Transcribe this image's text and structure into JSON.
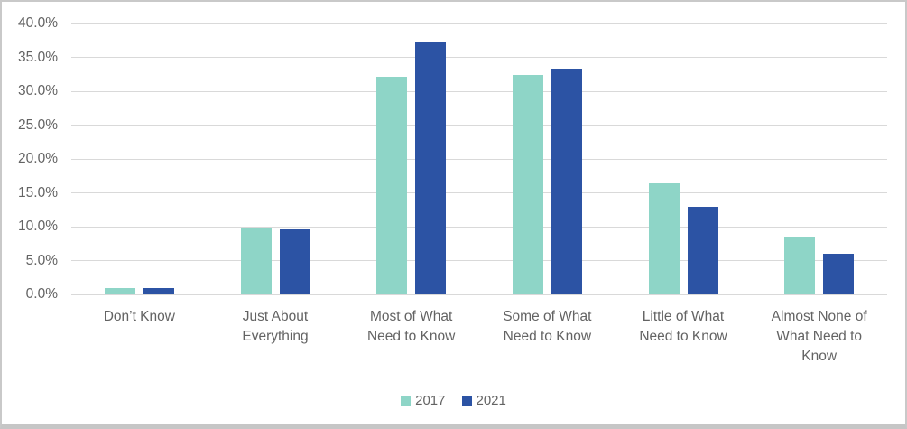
{
  "chart_data": {
    "type": "bar",
    "title": "",
    "xlabel": "",
    "ylabel": "",
    "categories": [
      "Don’t Know",
      "Just About Everything",
      "Most of What Need to Know",
      "Some of What Need to Know",
      "Little of What Need to Know",
      "Almost None of What Need to Know"
    ],
    "series": [
      {
        "name": "2017",
        "color": "#8ed5c7",
        "values": [
          0.9,
          9.7,
          32.1,
          32.4,
          16.4,
          8.5
        ]
      },
      {
        "name": "2021",
        "color": "#2c53a4",
        "values": [
          0.9,
          9.6,
          37.2,
          33.4,
          12.9,
          6.0
        ]
      }
    ],
    "ylim": [
      0,
      40
    ],
    "ytick_step": 5,
    "ytick_labels": [
      "0.0%",
      "5.0%",
      "10.0%",
      "15.0%",
      "20.0%",
      "25.0%",
      "30.0%",
      "35.0%",
      "40.0%"
    ],
    "grid": true,
    "legend_position": "bottom"
  },
  "theme": {
    "gridline_color": "#d9d9d9",
    "text_color": "#636363",
    "frame_border_color": "#c9c9c9",
    "background_color": "#ffffff"
  }
}
